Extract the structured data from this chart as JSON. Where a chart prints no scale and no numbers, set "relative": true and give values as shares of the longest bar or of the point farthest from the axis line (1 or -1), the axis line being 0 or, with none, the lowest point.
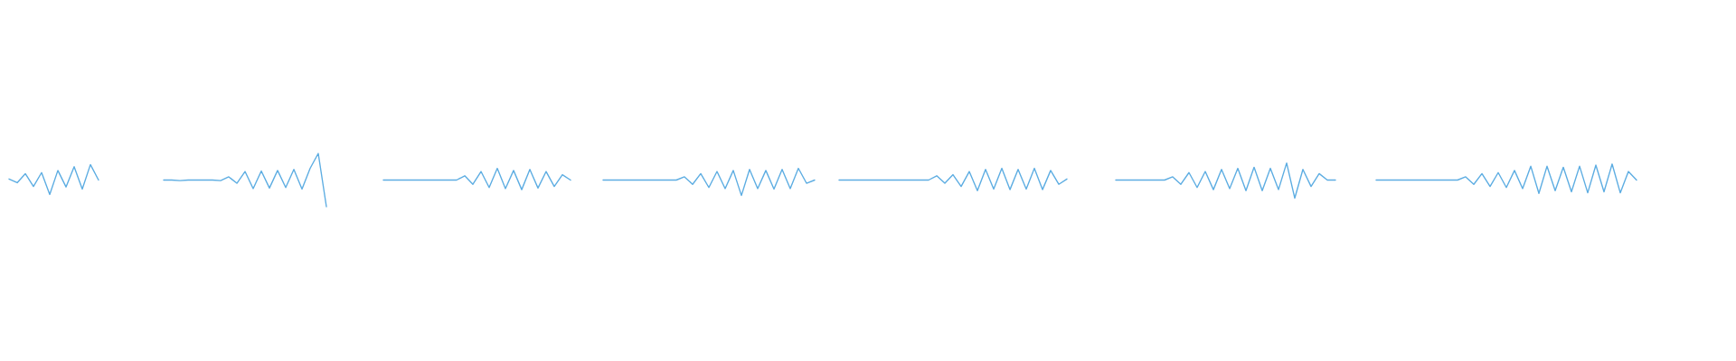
{
  "chart_data": {
    "type": "line",
    "relative": true,
    "categories": [
      null,
      null,
      null,
      null,
      null,
      null,
      null,
      null,
      null,
      null,
      null,
      null,
      null,
      null,
      null,
      null,
      null,
      null,
      null,
      null,
      null,
      null,
      null,
      null,
      null,
      null,
      null,
      null,
      null,
      null,
      null,
      null,
      null,
      null,
      null,
      null,
      null,
      null,
      null,
      null,
      null,
      null,
      null,
      null,
      null,
      null,
      null,
      null,
      null,
      null,
      null,
      null,
      null,
      null,
      null,
      null,
      null,
      null,
      null,
      null,
      null,
      null,
      null,
      null,
      null,
      null,
      null,
      null,
      null,
      null,
      null,
      null,
      null,
      null,
      null,
      null,
      null,
      null,
      null,
      null,
      null,
      null,
      null,
      null,
      null,
      null,
      null,
      null,
      null,
      null,
      null,
      null,
      null,
      null,
      null,
      null,
      null,
      null,
      null,
      null,
      null,
      null,
      null,
      null,
      null,
      null,
      null,
      null,
      null,
      null,
      null,
      null,
      null,
      null,
      null,
      null,
      null,
      null,
      null,
      null,
      null,
      null,
      null,
      null,
      null,
      null,
      null,
      null,
      null,
      null,
      null,
      null,
      null,
      null,
      null,
      null,
      null,
      null,
      null,
      null,
      null,
      null,
      null,
      null,
      null,
      null,
      null,
      null,
      null,
      null,
      null,
      null,
      null,
      null,
      null,
      null,
      null,
      null,
      null,
      null,
      null,
      null,
      null,
      null,
      null,
      null,
      null,
      null,
      null,
      null,
      null,
      null,
      null,
      null,
      null,
      null,
      null,
      null,
      null,
      null,
      null,
      null,
      null,
      null,
      null,
      null,
      null,
      null,
      null,
      null,
      null,
      null,
      null,
      null,
      null,
      null,
      null,
      null,
      null,
      null,
      null
    ],
    "series": [
      {
        "color": "#5dade2",
        "values": [
          0.52,
          0.45,
          0.62,
          0.38,
          0.64,
          0.23,
          0.68,
          0.37,
          0.75,
          0.33,
          0.79,
          0.5,
          null,
          null,
          null,
          null,
          null,
          null,
          null,
          null,
          null,
          null,
          null,
          null,
          null,
          null,
          null,
          null,
          null,
          null,
          null,
          null,
          null,
          null,
          null,
          null,
          null,
          null,
          null,
          null,
          null,
          null,
          null,
          null,
          null,
          null,
          null,
          null,
          null,
          null,
          null,
          null,
          null,
          null,
          null,
          null,
          null,
          null,
          null,
          null,
          null,
          null,
          null,
          null,
          null,
          null,
          null,
          null,
          null,
          null,
          null,
          null,
          null,
          null,
          null,
          null,
          null,
          null,
          null,
          null,
          null,
          null,
          null,
          null,
          null,
          null,
          null,
          null,
          null,
          null,
          null,
          null,
          null,
          null,
          null,
          null,
          null,
          null,
          null,
          null,
          null,
          null,
          null,
          null,
          null,
          null,
          null,
          null,
          null,
          null,
          null,
          null,
          null,
          null,
          null,
          null,
          null,
          null,
          null,
          null,
          null,
          null,
          null,
          null,
          null,
          null,
          null,
          null,
          null,
          null,
          null,
          null,
          null,
          null,
          null,
          null,
          null,
          null,
          null,
          null,
          null,
          null,
          null,
          null,
          null,
          null,
          null,
          null,
          null,
          null,
          null,
          null,
          null,
          null,
          null,
          null,
          null,
          null,
          null,
          null,
          null,
          null,
          null,
          null,
          null,
          null,
          null,
          null,
          null,
          null,
          null,
          null,
          null,
          null,
          null,
          null,
          null,
          null,
          null,
          null,
          null,
          null,
          null,
          null,
          null,
          null,
          null,
          null,
          null,
          null,
          null,
          null,
          null,
          null,
          null,
          null,
          null,
          null,
          null,
          null,
          null
        ]
      },
      {
        "color": "#5dade2",
        "values": [
          null,
          null,
          null,
          null,
          null,
          null,
          null,
          null,
          null,
          null,
          null,
          null,
          null,
          null,
          null,
          null,
          null,
          null,
          null,
          0.5,
          0.5,
          0.49,
          0.5,
          0.5,
          0.5,
          0.5,
          0.49,
          0.56,
          0.44,
          0.66,
          0.34,
          0.67,
          0.35,
          0.68,
          0.36,
          0.7,
          0.33,
          0.72,
          1.0,
          0.0,
          null,
          null,
          null,
          null,
          null,
          null,
          null,
          null,
          null,
          null,
          null,
          null,
          null,
          null,
          null,
          null,
          null,
          null,
          null,
          null,
          null,
          null,
          null,
          null,
          null,
          null,
          null,
          null,
          null,
          null,
          null,
          null,
          null,
          null,
          null,
          null,
          null,
          null,
          null,
          null,
          null,
          null,
          null,
          null,
          null,
          null,
          null,
          null,
          null,
          null,
          null,
          null,
          null,
          null,
          null,
          null,
          null,
          null,
          null,
          null,
          null,
          null,
          null,
          null,
          null,
          null,
          null,
          null,
          null,
          null,
          null,
          null,
          null,
          null,
          null,
          null,
          null,
          null,
          null,
          null,
          null,
          null,
          null,
          null,
          null,
          null,
          null,
          null,
          null,
          null,
          null,
          null,
          null,
          null,
          null,
          null,
          null,
          null,
          null,
          null,
          null,
          null,
          null,
          null,
          null,
          null,
          null,
          null,
          null,
          null,
          null,
          null,
          null,
          null,
          null,
          null,
          null,
          null,
          null,
          null,
          null,
          null,
          null,
          null,
          null,
          null,
          null,
          null,
          null,
          null,
          null,
          null,
          null,
          null,
          null,
          null,
          null,
          null,
          null,
          null,
          null,
          null,
          null,
          null,
          null,
          null,
          null,
          null,
          null,
          null,
          null,
          null,
          null,
          null,
          null,
          null,
          null,
          null,
          null,
          null,
          null
        ]
      },
      {
        "color": "#5dade2",
        "values": [
          null,
          null,
          null,
          null,
          null,
          null,
          null,
          null,
          null,
          null,
          null,
          null,
          null,
          null,
          null,
          null,
          null,
          null,
          null,
          null,
          null,
          null,
          null,
          null,
          null,
          null,
          null,
          null,
          null,
          null,
          null,
          null,
          null,
          null,
          null,
          null,
          null,
          null,
          null,
          null,
          null,
          null,
          null,
          null,
          null,
          null,
          0.5,
          0.5,
          0.5,
          0.5,
          0.5,
          0.5,
          0.5,
          0.5,
          0.5,
          0.5,
          0.58,
          0.42,
          0.66,
          0.36,
          0.72,
          0.34,
          0.68,
          0.32,
          0.7,
          0.35,
          0.66,
          0.38,
          0.6,
          0.5,
          null,
          null,
          null,
          null,
          null,
          null,
          null,
          null,
          null,
          null,
          null,
          null,
          null,
          null,
          null,
          null,
          null,
          null,
          null,
          null,
          null,
          null,
          null,
          null,
          null,
          null,
          null,
          null,
          null,
          null,
          null,
          null,
          null,
          null,
          null,
          null,
          null,
          null,
          null,
          null,
          null,
          null,
          null,
          null,
          null,
          null,
          null,
          null,
          null,
          null,
          null,
          null,
          null,
          null,
          null,
          null,
          null,
          null,
          null,
          null,
          null,
          null,
          null,
          null,
          null,
          null,
          null,
          null,
          null,
          null,
          null,
          null,
          null,
          null,
          null,
          null,
          null,
          null,
          null,
          null,
          null,
          null,
          null,
          null,
          null,
          null,
          null,
          null,
          null,
          null,
          null,
          null,
          null,
          null,
          null,
          null,
          null,
          null,
          null,
          null,
          null,
          null,
          null,
          null,
          null,
          null,
          null,
          null,
          null,
          null,
          null,
          null,
          null,
          null,
          null,
          null,
          null,
          null,
          null,
          null,
          null,
          null,
          null,
          null,
          null,
          null,
          null,
          null,
          null,
          null,
          null
        ]
      },
      {
        "color": "#5dade2",
        "values": [
          null,
          null,
          null,
          null,
          null,
          null,
          null,
          null,
          null,
          null,
          null,
          null,
          null,
          null,
          null,
          null,
          null,
          null,
          null,
          null,
          null,
          null,
          null,
          null,
          null,
          null,
          null,
          null,
          null,
          null,
          null,
          null,
          null,
          null,
          null,
          null,
          null,
          null,
          null,
          null,
          null,
          null,
          null,
          null,
          null,
          null,
          null,
          null,
          null,
          null,
          null,
          null,
          null,
          null,
          null,
          null,
          null,
          null,
          null,
          null,
          null,
          null,
          null,
          null,
          null,
          null,
          null,
          null,
          null,
          null,
          null,
          null,
          null,
          0.5,
          0.5,
          0.5,
          0.5,
          0.5,
          0.5,
          0.5,
          0.5,
          0.5,
          0.5,
          0.56,
          0.42,
          0.62,
          0.36,
          0.66,
          0.34,
          0.68,
          0.21,
          0.7,
          0.34,
          0.68,
          0.33,
          0.7,
          0.34,
          0.72,
          0.44,
          0.5,
          null,
          null,
          null,
          null,
          null,
          null,
          null,
          null,
          null,
          null,
          null,
          null,
          null,
          null,
          null,
          null,
          null,
          null,
          null,
          null,
          null,
          null,
          null,
          null,
          null,
          null,
          null,
          null,
          null,
          null,
          null,
          null,
          null,
          null,
          null,
          null,
          null,
          null,
          null,
          null,
          null,
          null,
          null,
          null,
          null,
          null,
          null,
          null,
          null,
          null,
          null,
          null,
          null,
          null,
          null,
          null,
          null,
          null,
          null,
          null,
          null,
          null,
          null,
          null,
          null,
          null,
          null,
          null,
          null,
          null,
          null,
          null,
          null,
          null,
          null,
          null,
          null,
          null,
          null,
          null,
          null,
          null,
          null,
          null,
          null,
          null,
          null,
          null,
          null,
          null,
          null,
          null,
          null,
          null,
          null,
          null,
          null,
          null,
          null,
          null,
          null
        ]
      },
      {
        "color": "#5dade2",
        "values": [
          null,
          null,
          null,
          null,
          null,
          null,
          null,
          null,
          null,
          null,
          null,
          null,
          null,
          null,
          null,
          null,
          null,
          null,
          null,
          null,
          null,
          null,
          null,
          null,
          null,
          null,
          null,
          null,
          null,
          null,
          null,
          null,
          null,
          null,
          null,
          null,
          null,
          null,
          null,
          null,
          null,
          null,
          null,
          null,
          null,
          null,
          null,
          null,
          null,
          null,
          null,
          null,
          null,
          null,
          null,
          null,
          null,
          null,
          null,
          null,
          null,
          null,
          null,
          null,
          null,
          null,
          null,
          null,
          null,
          null,
          null,
          null,
          null,
          null,
          null,
          null,
          null,
          null,
          null,
          null,
          null,
          null,
          null,
          null,
          null,
          null,
          null,
          null,
          null,
          null,
          null,
          null,
          null,
          null,
          null,
          null,
          null,
          null,
          null,
          null,
          null,
          null,
          0.5,
          0.5,
          0.5,
          0.5,
          0.5,
          0.5,
          0.5,
          0.5,
          0.5,
          0.5,
          0.5,
          0.5,
          0.58,
          0.44,
          0.6,
          0.38,
          0.66,
          0.3,
          0.7,
          0.33,
          0.72,
          0.32,
          0.7,
          0.33,
          0.72,
          0.32,
          0.68,
          0.42,
          0.52,
          null,
          null,
          null,
          null,
          null,
          null,
          null,
          null,
          null,
          null,
          null,
          null,
          null,
          null,
          null,
          null,
          null,
          null,
          null,
          null,
          null,
          null,
          null,
          null,
          null,
          null,
          null,
          null,
          null,
          null,
          null,
          null,
          null,
          null,
          null,
          null,
          null,
          null,
          null,
          null,
          null,
          null,
          null,
          null,
          null,
          null,
          null,
          null,
          null,
          null,
          null,
          null,
          null,
          null,
          null,
          null,
          null,
          null,
          null,
          null,
          null,
          null,
          null,
          null,
          null,
          null,
          null,
          null,
          null,
          null
        ]
      },
      {
        "color": "#5dade2",
        "values": [
          null,
          null,
          null,
          null,
          null,
          null,
          null,
          null,
          null,
          null,
          null,
          null,
          null,
          null,
          null,
          null,
          null,
          null,
          null,
          null,
          null,
          null,
          null,
          null,
          null,
          null,
          null,
          null,
          null,
          null,
          null,
          null,
          null,
          null,
          null,
          null,
          null,
          null,
          null,
          null,
          null,
          null,
          null,
          null,
          null,
          null,
          null,
          null,
          null,
          null,
          null,
          null,
          null,
          null,
          null,
          null,
          null,
          null,
          null,
          null,
          null,
          null,
          null,
          null,
          null,
          null,
          null,
          null,
          null,
          null,
          null,
          null,
          null,
          null,
          null,
          null,
          null,
          null,
          null,
          null,
          null,
          null,
          null,
          null,
          null,
          null,
          null,
          null,
          null,
          null,
          null,
          null,
          null,
          null,
          null,
          null,
          null,
          null,
          null,
          null,
          null,
          null,
          null,
          null,
          null,
          null,
          null,
          null,
          null,
          null,
          null,
          null,
          null,
          null,
          null,
          null,
          null,
          null,
          null,
          null,
          null,
          null,
          null,
          null,
          null,
          null,
          null,
          null,
          null,
          null,
          null,
          null,
          null,
          null,
          null,
          null,
          0.5,
          0.5,
          0.5,
          0.5,
          0.5,
          0.5,
          0.5,
          0.56,
          0.42,
          0.64,
          0.36,
          0.66,
          0.32,
          0.7,
          0.34,
          0.72,
          0.3,
          0.74,
          0.3,
          0.72,
          0.32,
          0.82,
          0.16,
          0.7,
          0.38,
          0.62,
          0.5,
          0.5,
          null,
          null,
          null,
          null,
          null,
          null,
          null,
          null,
          null,
          null,
          null,
          null,
          null,
          null,
          null,
          null,
          null,
          null,
          null,
          null,
          null,
          null,
          null,
          null,
          null,
          null,
          null,
          null,
          null,
          null,
          null,
          null,
          null,
          null,
          null,
          null,
          null
        ]
      },
      {
        "color": "#5dade2",
        "values": [
          null,
          null,
          null,
          null,
          null,
          null,
          null,
          null,
          null,
          null,
          null,
          null,
          null,
          null,
          null,
          null,
          null,
          null,
          null,
          null,
          null,
          null,
          null,
          null,
          null,
          null,
          null,
          null,
          null,
          null,
          null,
          null,
          null,
          null,
          null,
          null,
          null,
          null,
          null,
          null,
          null,
          null,
          null,
          null,
          null,
          null,
          null,
          null,
          null,
          null,
          null,
          null,
          null,
          null,
          null,
          null,
          null,
          null,
          null,
          null,
          null,
          null,
          null,
          null,
          null,
          null,
          null,
          null,
          null,
          null,
          null,
          null,
          null,
          null,
          null,
          null,
          null,
          null,
          null,
          null,
          null,
          null,
          null,
          null,
          null,
          null,
          null,
          null,
          null,
          null,
          null,
          null,
          null,
          null,
          null,
          null,
          null,
          null,
          null,
          null,
          null,
          null,
          null,
          null,
          null,
          null,
          null,
          null,
          null,
          null,
          null,
          null,
          null,
          null,
          null,
          null,
          null,
          null,
          null,
          null,
          null,
          null,
          null,
          null,
          null,
          null,
          null,
          null,
          null,
          null,
          null,
          null,
          null,
          null,
          null,
          null,
          null,
          null,
          null,
          null,
          null,
          null,
          null,
          null,
          null,
          null,
          null,
          null,
          null,
          null,
          null,
          null,
          null,
          null,
          null,
          null,
          null,
          null,
          null,
          null,
          null,
          null,
          null,
          null,
          null,
          null,
          null,
          null,
          0.5,
          0.5,
          0.5,
          0.5,
          0.5,
          0.5,
          0.5,
          0.5,
          0.5,
          0.5,
          0.5,
          0.56,
          0.42,
          0.62,
          0.38,
          0.64,
          0.36,
          0.68,
          0.34,
          0.76,
          0.25,
          0.76,
          0.3,
          0.74,
          0.28,
          0.76,
          0.26,
          0.78,
          0.28,
          0.8,
          0.26,
          0.66,
          0.5
        ]
      }
    ]
  }
}
